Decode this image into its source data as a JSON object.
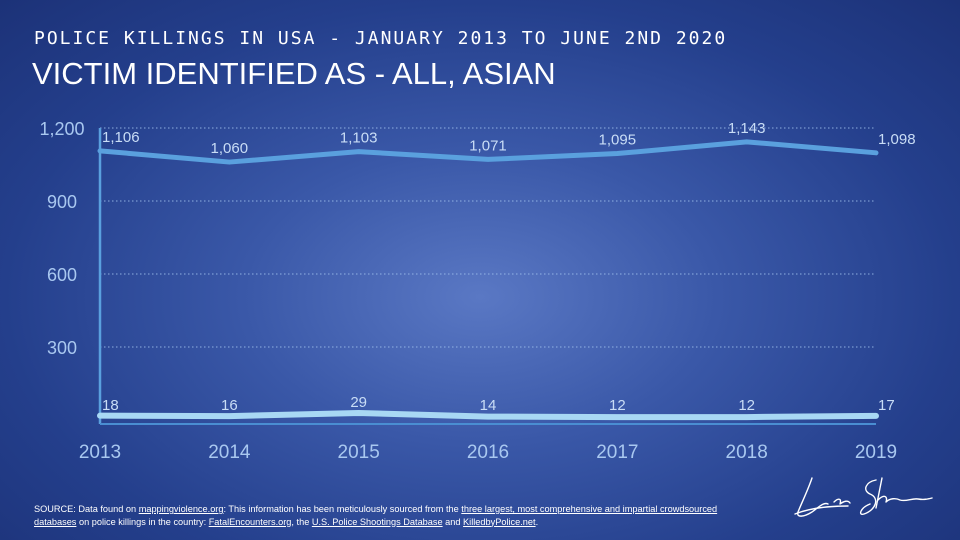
{
  "header": {
    "subtitle": "POLICE KILLINGS IN USA - JANUARY 2013 TO JUNE 2ND 2020",
    "title": "VICTIM IDENTIFIED AS - ALL, ASIAN"
  },
  "chart_data": {
    "type": "line",
    "x": [
      "2013",
      "2014",
      "2015",
      "2016",
      "2017",
      "2018",
      "2019"
    ],
    "series": [
      {
        "name": "",
        "values": [
          1106,
          1060,
          1103,
          1071,
          1095,
          1143,
          1098
        ],
        "labels": [
          "1,106",
          "1,060",
          "1,103",
          "1,071",
          "1,095",
          "1,143",
          "1,098"
        ],
        "color": "#5aa0de"
      },
      {
        "name": "",
        "values": [
          18,
          16,
          29,
          14,
          12,
          12,
          17
        ],
        "labels": [
          "18",
          "16",
          "29",
          "14",
          "12",
          "12",
          "17"
        ],
        "color": "#a8d8f4"
      }
    ],
    "yticks": [
      300,
      600,
      900,
      1200
    ],
    "ytick_labels": [
      "300",
      "600",
      "900",
      "1,200"
    ],
    "ylim": [
      0,
      1200
    ],
    "grid": true,
    "title": "",
    "xlabel": "",
    "ylabel": ""
  },
  "source": {
    "prefix": "SOURCE: Data found on ",
    "link1": "mappingviolence.org",
    "mid1": ": This information has been meticulously sourced from the ",
    "link2": "three largest, most comprehensive and impartial crowdsourced databases",
    "mid2": " on police killings in the country: ",
    "link3": "FatalEncounters.org",
    "mid3": ", the ",
    "link4": "U.S. Police Shootings Database",
    "mid4": " and ",
    "link5": "KilledbyPolice.net",
    "suffix": "."
  },
  "signature": {
    "text": "Leon Shirinsky",
    "kind": "handwritten-signature"
  }
}
